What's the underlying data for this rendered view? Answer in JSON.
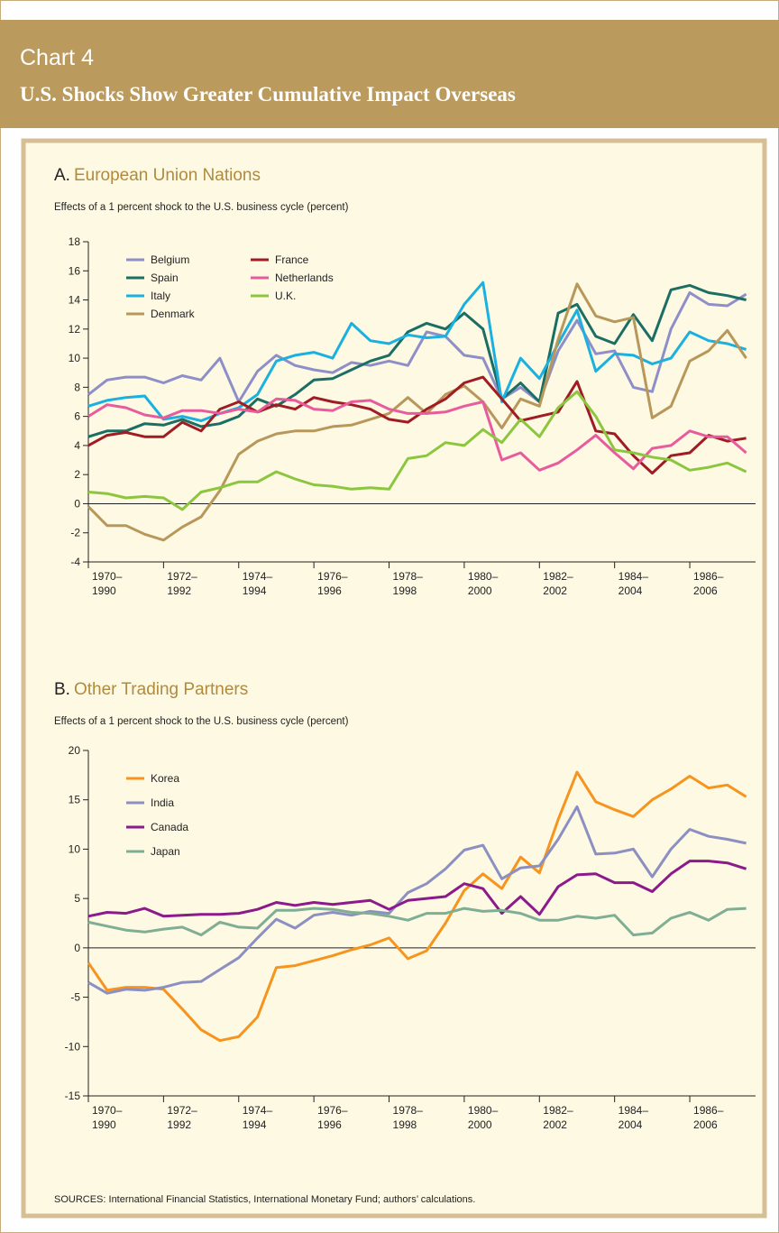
{
  "header": {
    "label": "Chart 4",
    "title": "U.S. Shocks Show Greater Cumulative Impact Overseas"
  },
  "chart_data": [
    {
      "type": "line",
      "panel_label": "A.",
      "title": "European Union Nations",
      "subtitle": "Effects of a 1 percent shock to the U.S. business cycle (percent)",
      "x": [
        1970,
        1970.5,
        1971,
        1971.5,
        1972,
        1972.5,
        1973,
        1973.5,
        1974,
        1974.5,
        1975,
        1975.5,
        1976,
        1976.5,
        1977,
        1977.5,
        1978,
        1978.5,
        1979,
        1979.5,
        1980,
        1980.5,
        1981,
        1981.5,
        1982,
        1982.5,
        1983,
        1983.5,
        1984,
        1984.5,
        1985,
        1985.5,
        1986,
        1986.5,
        1987,
        1987.5
      ],
      "xlim": [
        1970,
        1987.75
      ],
      "xticks": [
        {
          "value": 1970,
          "label": "1970–\n1990"
        },
        {
          "value": 1972,
          "label": "1972–\n1992"
        },
        {
          "value": 1974,
          "label": "1974–\n1994"
        },
        {
          "value": 1976,
          "label": "1976–\n1996"
        },
        {
          "value": 1978,
          "label": "1978–\n1998"
        },
        {
          "value": 1980,
          "label": "1980–\n2000"
        },
        {
          "value": 1982,
          "label": "1982–\n2002"
        },
        {
          "value": 1984,
          "label": "1984–\n2004"
        },
        {
          "value": 1986,
          "label": "1986–\n2006"
        }
      ],
      "ylim": [
        -4,
        18
      ],
      "yticks": [
        -4,
        -2,
        0,
        2,
        4,
        6,
        8,
        10,
        12,
        14,
        16,
        18
      ],
      "grid": false,
      "legend": "upper left",
      "series": [
        {
          "name": "Belgium",
          "color": "#8e8ec8",
          "values": [
            7.5,
            8.5,
            8.7,
            8.7,
            8.3,
            8.8,
            8.5,
            10.0,
            7.0,
            9.1,
            10.2,
            9.5,
            9.2,
            9.0,
            9.7,
            9.5,
            9.8,
            9.5,
            11.8,
            11.5,
            10.2,
            10.0,
            7.2,
            8.0,
            7.0,
            10.5,
            12.6,
            10.3,
            10.5,
            8.0,
            7.7,
            12.0,
            14.5,
            13.7,
            13.6,
            14.4
          ]
        },
        {
          "name": "Spain",
          "color": "#1a6e63",
          "values": [
            4.6,
            5.0,
            5.0,
            5.5,
            5.4,
            5.8,
            5.3,
            5.5,
            6.0,
            7.2,
            6.7,
            7.5,
            8.5,
            8.6,
            9.2,
            9.8,
            10.2,
            11.8,
            12.4,
            12.0,
            13.1,
            12.0,
            7.2,
            8.3,
            7.0,
            13.1,
            13.7,
            11.5,
            11.0,
            13.0,
            11.2,
            14.7,
            15.0,
            14.5,
            14.3,
            14.0
          ]
        },
        {
          "name": "Italy",
          "color": "#1ab0e0",
          "values": [
            6.7,
            7.1,
            7.3,
            7.4,
            5.8,
            6.0,
            5.7,
            6.2,
            6.6,
            7.5,
            9.8,
            10.2,
            10.4,
            10.0,
            12.4,
            11.2,
            11.0,
            11.6,
            11.4,
            11.5,
            13.7,
            15.2,
            7.0,
            10.0,
            8.6,
            11.0,
            13.3,
            9.1,
            10.3,
            10.2,
            9.6,
            10.0,
            11.8,
            11.2,
            11.0,
            10.6
          ]
        },
        {
          "name": "Denmark",
          "color": "#b8975a",
          "values": [
            -0.2,
            -1.5,
            -1.5,
            -2.1,
            -2.5,
            -1.6,
            -0.9,
            0.9,
            3.4,
            4.3,
            4.8,
            5.0,
            5.0,
            5.3,
            5.4,
            5.8,
            6.2,
            7.3,
            6.2,
            7.5,
            8.1,
            7.0,
            5.2,
            7.2,
            6.7,
            11.3,
            15.1,
            12.9,
            12.5,
            12.8,
            5.9,
            6.7,
            9.8,
            10.5,
            11.9,
            10.0
          ]
        },
        {
          "name": "France",
          "color": "#a01c24",
          "values": [
            4.0,
            4.7,
            4.9,
            4.6,
            4.6,
            5.6,
            5.0,
            6.5,
            7.0,
            6.3,
            6.8,
            6.5,
            7.3,
            7.0,
            6.8,
            6.5,
            5.8,
            5.6,
            6.5,
            7.2,
            8.3,
            8.7,
            7.2,
            5.7,
            6.0,
            6.3,
            8.4,
            5.0,
            4.8,
            3.3,
            2.1,
            3.3,
            3.5,
            4.7,
            4.3,
            4.5
          ]
        },
        {
          "name": "Netherlands",
          "color": "#e85c9e",
          "values": [
            6.0,
            6.8,
            6.6,
            6.1,
            5.9,
            6.4,
            6.4,
            6.2,
            6.5,
            6.3,
            7.2,
            7.1,
            6.5,
            6.4,
            7.0,
            7.1,
            6.5,
            6.2,
            6.2,
            6.3,
            6.7,
            7.0,
            3.0,
            3.5,
            2.3,
            2.8,
            3.7,
            4.7,
            3.5,
            2.4,
            3.8,
            4.0,
            5.0,
            4.6,
            4.6,
            3.5
          ]
        },
        {
          "name": "U.K.",
          "color": "#8cc63f",
          "values": [
            0.8,
            0.7,
            0.4,
            0.5,
            0.4,
            -0.4,
            0.8,
            1.1,
            1.5,
            1.5,
            2.2,
            1.7,
            1.3,
            1.2,
            1.0,
            1.1,
            1.0,
            3.1,
            3.3,
            4.2,
            4.0,
            5.1,
            4.2,
            5.8,
            4.6,
            6.6,
            7.7,
            6.0,
            3.7,
            3.5,
            3.2,
            3.0,
            2.3,
            2.5,
            2.8,
            2.2
          ]
        }
      ]
    },
    {
      "type": "line",
      "panel_label": "B.",
      "title": "Other Trading Partners",
      "subtitle": "Effects of a 1 percent shock to the U.S. business cycle (percent)",
      "x": [
        1970,
        1970.5,
        1971,
        1971.5,
        1972,
        1972.5,
        1973,
        1973.5,
        1974,
        1974.5,
        1975,
        1975.5,
        1976,
        1976.5,
        1977,
        1977.5,
        1978,
        1978.5,
        1979,
        1979.5,
        1980,
        1980.5,
        1981,
        1981.5,
        1982,
        1982.5,
        1983,
        1983.5,
        1984,
        1984.5,
        1985,
        1985.5,
        1986,
        1986.5,
        1987,
        1987.5
      ],
      "xlim": [
        1970,
        1987.75
      ],
      "xticks": [
        {
          "value": 1970,
          "label": "1970–\n1990"
        },
        {
          "value": 1972,
          "label": "1972–\n1992"
        },
        {
          "value": 1974,
          "label": "1974–\n1994"
        },
        {
          "value": 1976,
          "label": "1976–\n1996"
        },
        {
          "value": 1978,
          "label": "1978–\n1998"
        },
        {
          "value": 1980,
          "label": "1980–\n2000"
        },
        {
          "value": 1982,
          "label": "1982–\n2002"
        },
        {
          "value": 1984,
          "label": "1984–\n2004"
        },
        {
          "value": 1986,
          "label": "1986–\n2006"
        }
      ],
      "ylim": [
        -15,
        20
      ],
      "yticks": [
        -15,
        -10,
        -5,
        0,
        5,
        10,
        15,
        20
      ],
      "grid": false,
      "legend": "upper left",
      "series": [
        {
          "name": "Korea",
          "color": "#f7941d",
          "values": [
            -1.5,
            -4.3,
            -4.0,
            -4.0,
            -4.2,
            -6.2,
            -8.3,
            -9.4,
            -9.0,
            -7.0,
            -2.0,
            -1.8,
            -1.3,
            -0.8,
            -0.2,
            0.3,
            1.0,
            -1.1,
            -0.3,
            2.5,
            5.8,
            7.5,
            6.0,
            9.2,
            7.6,
            13.0,
            17.8,
            14.8,
            14.0,
            13.3,
            15.0,
            16.1,
            17.4,
            16.2,
            16.5,
            15.3
          ]
        },
        {
          "name": "India",
          "color": "#8c8fc2",
          "values": [
            -3.5,
            -4.6,
            -4.2,
            -4.3,
            -4.0,
            -3.5,
            -3.4,
            -2.2,
            -1.0,
            1.0,
            2.9,
            2.0,
            3.3,
            3.6,
            3.3,
            3.7,
            3.5,
            5.6,
            6.5,
            8.0,
            9.9,
            10.4,
            7.0,
            8.1,
            8.3,
            11.0,
            14.3,
            9.5,
            9.6,
            10.0,
            7.2,
            10.0,
            12.0,
            11.3,
            11.0,
            10.6
          ]
        },
        {
          "name": "Canada",
          "color": "#8b1a8b",
          "values": [
            3.2,
            3.6,
            3.5,
            4.0,
            3.2,
            3.3,
            3.4,
            3.4,
            3.5,
            3.9,
            4.6,
            4.3,
            4.6,
            4.4,
            4.6,
            4.8,
            3.9,
            4.8,
            5.0,
            5.2,
            6.5,
            6.0,
            3.5,
            5.2,
            3.4,
            6.2,
            7.4,
            7.5,
            6.6,
            6.6,
            5.7,
            7.5,
            8.8,
            8.8,
            8.6,
            8.0
          ]
        },
        {
          "name": "Japan",
          "color": "#7fae94",
          "values": [
            2.6,
            2.2,
            1.8,
            1.6,
            1.9,
            2.1,
            1.3,
            2.6,
            2.1,
            2.0,
            3.8,
            3.8,
            4.0,
            3.9,
            3.6,
            3.5,
            3.2,
            2.8,
            3.5,
            3.5,
            4.0,
            3.7,
            3.8,
            3.5,
            2.8,
            2.8,
            3.2,
            3.0,
            3.3,
            1.3,
            1.5,
            3.0,
            3.6,
            2.8,
            3.9,
            4.0
          ]
        }
      ]
    }
  ],
  "sources": "SOURCES: International Financial Statistics, International Monetary Fund; authors’ calculations."
}
